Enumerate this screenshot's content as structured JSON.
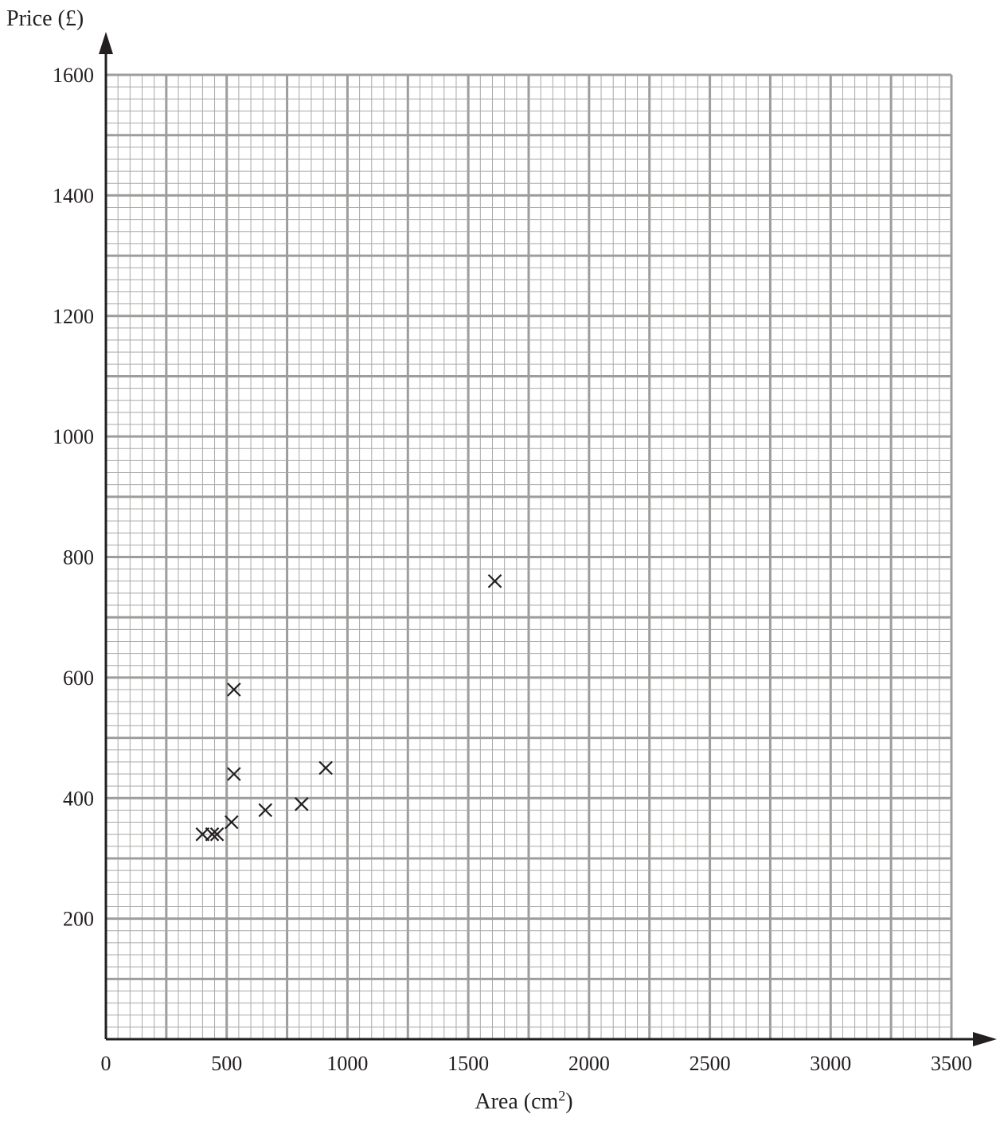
{
  "chart_data": {
    "type": "scatter",
    "title": "",
    "ylabel": "Price (£)",
    "xlabel_main": "Area (cm",
    "xlabel_sup": "2",
    "xlabel_tail": ")",
    "xlim": [
      0,
      3500
    ],
    "ylim": [
      0,
      1600
    ],
    "x_ticks": [
      0,
      500,
      1000,
      1500,
      2000,
      2500,
      3000,
      3500
    ],
    "y_ticks": [
      200,
      400,
      600,
      800,
      1000,
      1200,
      1400,
      1600
    ],
    "grid": true,
    "marker": "cross",
    "points": [
      {
        "x": 400,
        "y": 340
      },
      {
        "x": 440,
        "y": 340
      },
      {
        "x": 460,
        "y": 340
      },
      {
        "x": 520,
        "y": 360
      },
      {
        "x": 530,
        "y": 440
      },
      {
        "x": 530,
        "y": 580
      },
      {
        "x": 660,
        "y": 380
      },
      {
        "x": 810,
        "y": 390
      },
      {
        "x": 910,
        "y": 450
      },
      {
        "x": 1610,
        "y": 760
      }
    ],
    "colors": {
      "major_grid": "#9d9d9c",
      "minor_grid": "#a8a8a7",
      "ink": "#231f20"
    }
  }
}
